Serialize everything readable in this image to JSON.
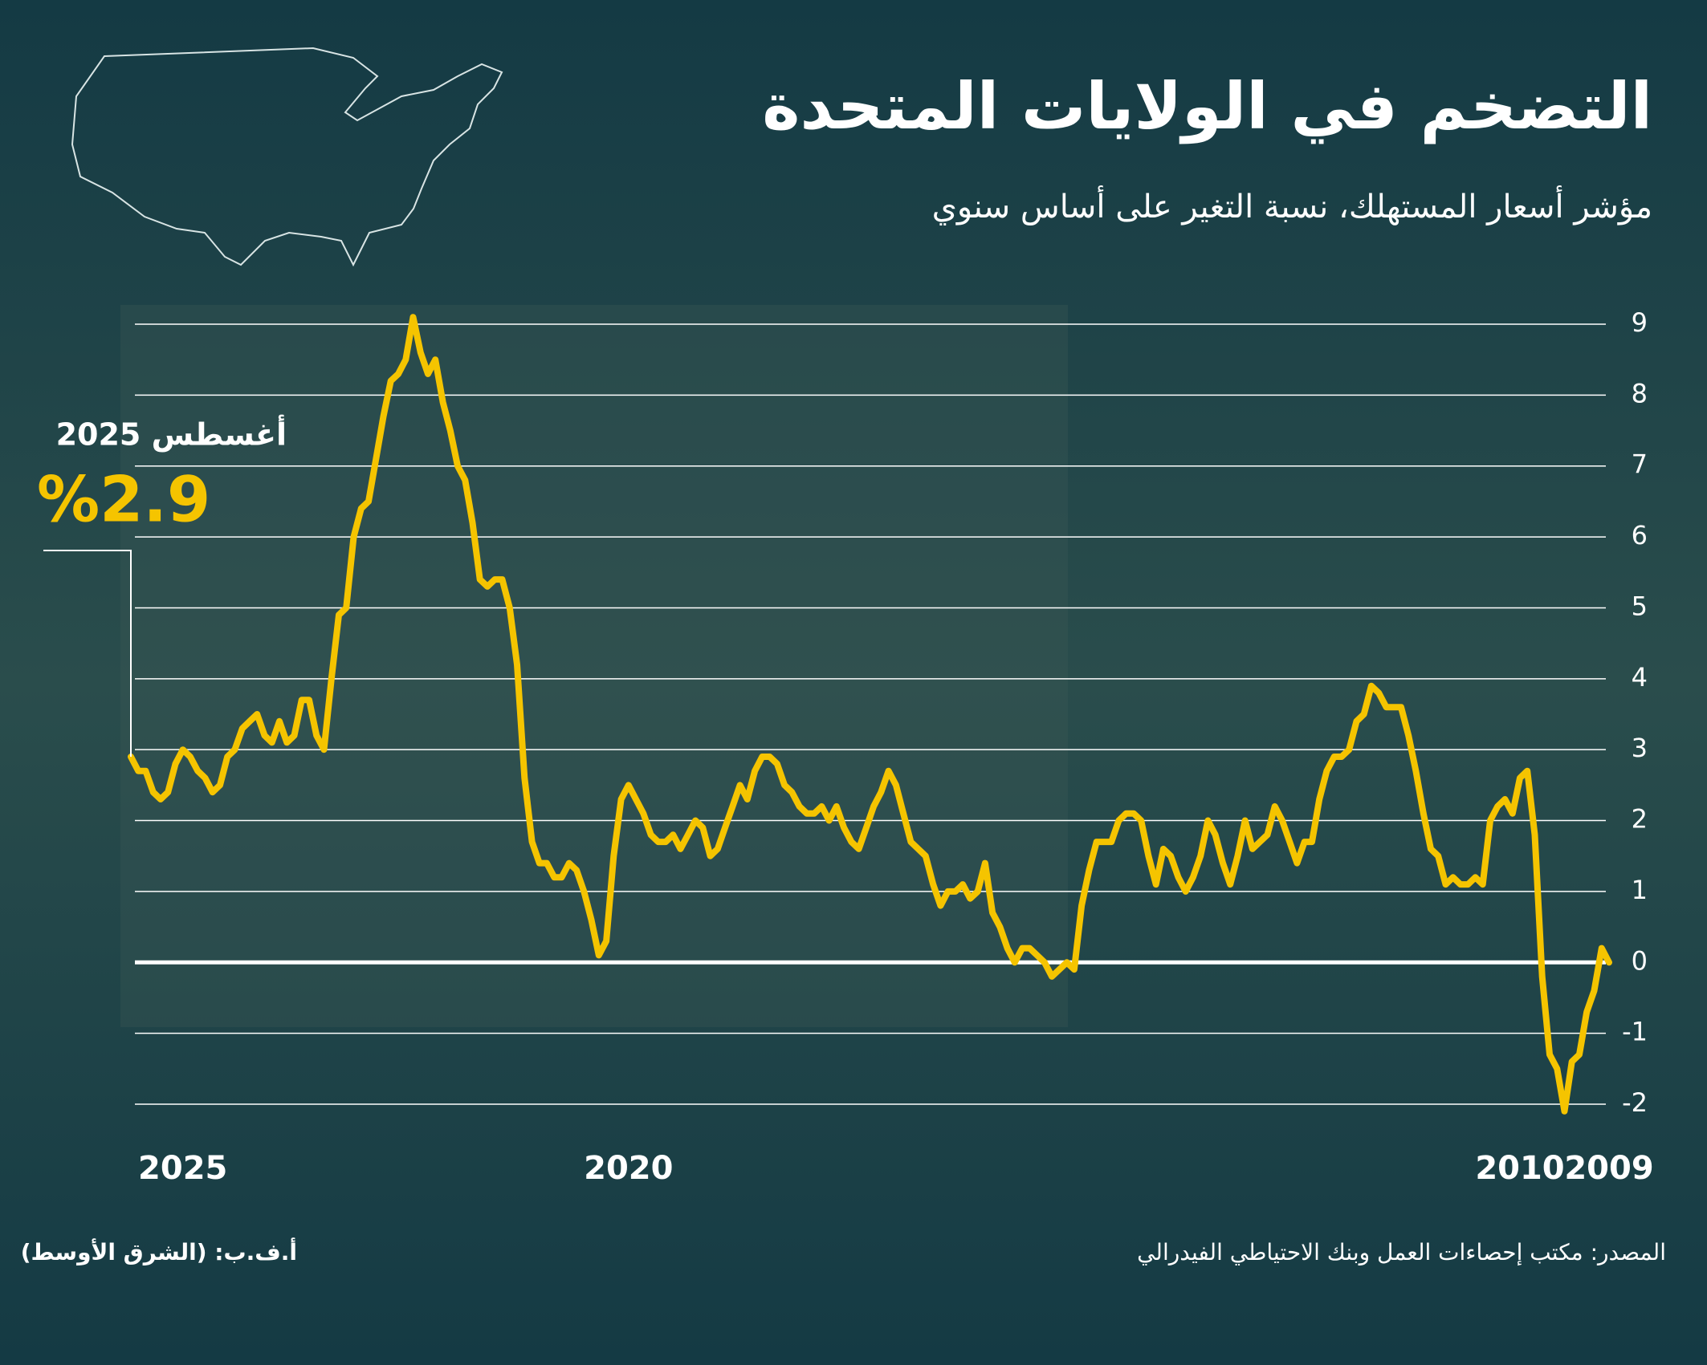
{
  "chart_data": {
    "type": "line",
    "title": "التضخم في الولايات المتحدة",
    "subtitle": "مؤشر أسعار المستهلك، نسبة التغير على أساس سنوي",
    "annotation": {
      "text": "أغسطس 2025",
      "value_label": "%2.9"
    },
    "source": "المصدر: مكتب إحصاءات العمل وبنك الاحتياطي الفيدرالي",
    "credit": "أ.ف.ب: (الشرق الأوسط)",
    "xlim": [
      2025.583,
      2009
    ],
    "xticks": [
      2025,
      2020,
      2010,
      2009
    ],
    "ylim": [
      -2,
      9
    ],
    "yticks": [
      -2,
      -1,
      0,
      1,
      2,
      3,
      4,
      5,
      6,
      7,
      8,
      9
    ],
    "grid": true,
    "x": [
      2009,
      2009.083,
      2009.167,
      2009.25,
      2009.333,
      2009.417,
      2009.5,
      2009.583,
      2009.667,
      2009.75,
      2009.833,
      2009.917,
      2010,
      2010.083,
      2010.167,
      2010.25,
      2010.333,
      2010.417,
      2010.5,
      2010.583,
      2010.667,
      2010.75,
      2010.833,
      2010.917,
      2011,
      2011.083,
      2011.167,
      2011.25,
      2011.333,
      2011.417,
      2011.5,
      2011.583,
      2011.667,
      2011.75,
      2011.833,
      2011.917,
      2012,
      2012.083,
      2012.167,
      2012.25,
      2012.333,
      2012.417,
      2012.5,
      2012.583,
      2012.667,
      2012.75,
      2012.833,
      2012.917,
      2013,
      2013.083,
      2013.167,
      2013.25,
      2013.333,
      2013.417,
      2013.5,
      2013.583,
      2013.667,
      2013.75,
      2013.833,
      2013.917,
      2014,
      2014.083,
      2014.167,
      2014.25,
      2014.333,
      2014.417,
      2014.5,
      2014.583,
      2014.667,
      2014.75,
      2014.833,
      2014.917,
      2015,
      2015.083,
      2015.167,
      2015.25,
      2015.333,
      2015.417,
      2015.5,
      2015.583,
      2015.667,
      2015.75,
      2015.833,
      2015.917,
      2016,
      2016.083,
      2016.167,
      2016.25,
      2016.333,
      2016.417,
      2016.5,
      2016.583,
      2016.667,
      2016.75,
      2016.833,
      2016.917,
      2017,
      2017.083,
      2017.167,
      2017.25,
      2017.333,
      2017.417,
      2017.5,
      2017.583,
      2017.667,
      2017.75,
      2017.833,
      2017.917,
      2018,
      2018.083,
      2018.167,
      2018.25,
      2018.333,
      2018.417,
      2018.5,
      2018.583,
      2018.667,
      2018.75,
      2018.833,
      2018.917,
      2019,
      2019.083,
      2019.167,
      2019.25,
      2019.333,
      2019.417,
      2019.5,
      2019.583,
      2019.667,
      2019.75,
      2019.833,
      2019.917,
      2020,
      2020.083,
      2020.167,
      2020.25,
      2020.333,
      2020.417,
      2020.5,
      2020.583,
      2020.667,
      2020.75,
      2020.833,
      2020.917,
      2021,
      2021.083,
      2021.167,
      2021.25,
      2021.333,
      2021.417,
      2021.5,
      2021.583,
      2021.667,
      2021.75,
      2021.833,
      2021.917,
      2022,
      2022.083,
      2022.167,
      2022.25,
      2022.333,
      2022.417,
      2022.5,
      2022.583,
      2022.667,
      2022.75,
      2022.833,
      2022.917,
      2023,
      2023.083,
      2023.167,
      2023.25,
      2023.333,
      2023.417,
      2023.5,
      2023.583,
      2023.667,
      2023.75,
      2023.833,
      2023.917,
      2024,
      2024.083,
      2024.167,
      2024.25,
      2024.333,
      2024.417,
      2024.5,
      2024.583,
      2024.667,
      2024.75,
      2024.833,
      2024.917,
      2025,
      2025.083,
      2025.167,
      2025.25,
      2025.333,
      2025.417,
      2025.5,
      2025.583
    ],
    "series": [
      {
        "color": "#f5c400",
        "values": [
          0.0,
          0.2,
          -0.4,
          -0.7,
          -1.3,
          -1.4,
          -2.1,
          -1.5,
          -1.3,
          -0.2,
          1.8,
          2.7,
          2.6,
          2.1,
          2.3,
          2.2,
          2.0,
          1.1,
          1.2,
          1.1,
          1.1,
          1.2,
          1.1,
          1.5,
          1.6,
          2.1,
          2.7,
          3.2,
          3.6,
          3.6,
          3.6,
          3.8,
          3.9,
          3.5,
          3.4,
          3.0,
          2.9,
          2.9,
          2.7,
          2.3,
          1.7,
          1.7,
          1.4,
          1.7,
          2.0,
          2.2,
          1.8,
          1.7,
          1.6,
          2.0,
          1.5,
          1.1,
          1.4,
          1.8,
          2.0,
          1.5,
          1.2,
          1.0,
          1.2,
          1.5,
          1.6,
          1.1,
          1.5,
          2.0,
          2.1,
          2.1,
          2.0,
          1.7,
          1.7,
          1.7,
          1.3,
          0.8,
          -0.1,
          0.0,
          -0.1,
          -0.2,
          0.0,
          0.1,
          0.2,
          0.2,
          0.0,
          0.2,
          0.5,
          0.7,
          1.4,
          1.0,
          0.9,
          1.1,
          1.0,
          1.0,
          0.8,
          1.1,
          1.5,
          1.6,
          1.7,
          2.1,
          2.5,
          2.7,
          2.4,
          2.2,
          1.9,
          1.6,
          1.7,
          1.9,
          2.2,
          2.0,
          2.2,
          2.1,
          2.1,
          2.2,
          2.4,
          2.5,
          2.8,
          2.9,
          2.9,
          2.7,
          2.3,
          2.5,
          2.2,
          1.9,
          1.6,
          1.5,
          1.9,
          2.0,
          1.8,
          1.6,
          1.8,
          1.7,
          1.7,
          1.8,
          2.1,
          2.3,
          2.5,
          2.3,
          1.5,
          0.3,
          0.1,
          0.6,
          1.0,
          1.3,
          1.4,
          1.2,
          1.2,
          1.4,
          1.4,
          1.7,
          2.6,
          4.2,
          5.0,
          5.4,
          5.4,
          5.3,
          5.4,
          6.2,
          6.8,
          7.0,
          7.5,
          7.9,
          8.5,
          8.3,
          8.6,
          9.1,
          8.5,
          8.3,
          8.2,
          7.7,
          7.1,
          6.5,
          6.4,
          6.0,
          5.0,
          4.9,
          4.0,
          3.0,
          3.2,
          3.7,
          3.7,
          3.2,
          3.1,
          3.4,
          3.1,
          3.2,
          3.5,
          3.4,
          3.3,
          3.0,
          2.9,
          2.5,
          2.4,
          2.6,
          2.7,
          2.9,
          3.0,
          2.8,
          2.4,
          2.3,
          2.4,
          2.7,
          2.7,
          2.9
        ]
      }
    ]
  }
}
